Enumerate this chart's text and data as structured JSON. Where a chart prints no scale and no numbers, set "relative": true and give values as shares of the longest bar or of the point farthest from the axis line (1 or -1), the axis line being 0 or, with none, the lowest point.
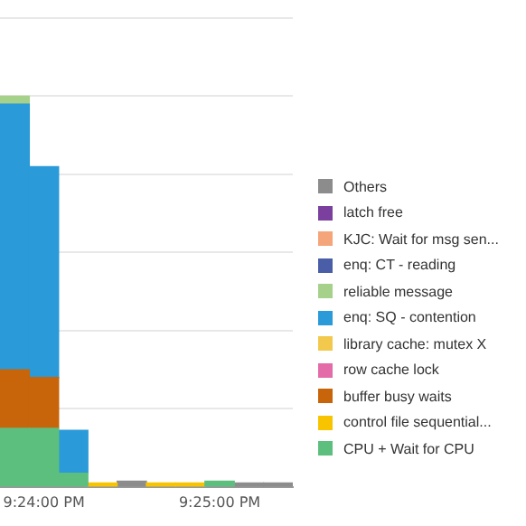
{
  "chart_data": {
    "type": "bar",
    "stacked": true,
    "relative": true,
    "grid": "y",
    "legend": "right",
    "categories": [
      null,
      "9:24:00 PM",
      null,
      null,
      null,
      null,
      null,
      "9:25:00 PM",
      null,
      null
    ],
    "series": [
      {
        "name": "CPU + Wait for CPU",
        "color": "#5dbf7e",
        "values": [
          0.15,
          0.15,
          0.035,
          null,
          null,
          null,
          null,
          0.015,
          null,
          null
        ]
      },
      {
        "name": "control file sequential...",
        "color": "#f8c400",
        "values": [
          null,
          null,
          null,
          0.01,
          null,
          0.01,
          0.01,
          null,
          null,
          null
        ]
      },
      {
        "name": "buffer busy waits",
        "color": "#c8640a",
        "values": [
          0.15,
          0.13,
          null,
          null,
          null,
          null,
          null,
          null,
          null,
          null
        ]
      },
      {
        "name": "row cache lock",
        "color": "#e36ba7",
        "values": [
          null,
          null,
          null,
          null,
          null,
          null,
          null,
          null,
          null,
          null
        ]
      },
      {
        "name": "library cache: mutex X",
        "color": "#f2c94c",
        "values": [
          null,
          null,
          null,
          null,
          null,
          null,
          null,
          null,
          null,
          null
        ]
      },
      {
        "name": "enq: SQ - contention",
        "color": "#2a9ad8",
        "values": [
          0.68,
          0.54,
          0.11,
          null,
          null,
          null,
          null,
          null,
          null,
          null
        ]
      },
      {
        "name": "reliable message",
        "color": "#a6d18a",
        "values": [
          0.02,
          null,
          null,
          null,
          null,
          null,
          null,
          null,
          null,
          null
        ]
      },
      {
        "name": "enq: CT - reading",
        "color": "#4a5ea8",
        "values": [
          null,
          null,
          null,
          null,
          null,
          null,
          null,
          null,
          null,
          null
        ]
      },
      {
        "name": "KJC: Wait for msg sen...",
        "color": "#f4a57a",
        "values": [
          null,
          null,
          null,
          null,
          null,
          null,
          null,
          null,
          null,
          null
        ]
      },
      {
        "name": "latch free",
        "color": "#7b3f9e",
        "values": [
          null,
          null,
          null,
          null,
          null,
          null,
          null,
          null,
          null,
          null
        ]
      },
      {
        "name": "Others",
        "color": "#8c8c8c",
        "values": [
          null,
          null,
          null,
          null,
          0.015,
          null,
          null,
          null,
          0.01,
          0.01
        ]
      }
    ]
  }
}
